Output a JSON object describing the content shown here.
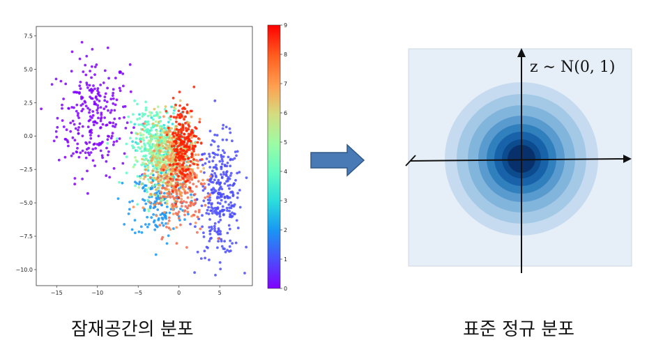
{
  "left_panel": {
    "caption": "잠재공간의 분포",
    "chart_data": {
      "type": "scatter",
      "x_ticks": [
        "−15",
        "−10",
        "−5",
        "0",
        "5"
      ],
      "y_ticks": [
        "7.5",
        "5.0",
        "2.5",
        "0.0",
        "−2.5",
        "−5.0",
        "−7.5",
        "−10.0"
      ],
      "xlim": [
        -17.5,
        9.0
      ],
      "ylim": [
        -11.2,
        8.2
      ],
      "colorbar": {
        "colormap": "rainbow",
        "ticks": [
          "0",
          "1",
          "2",
          "3",
          "4",
          "5",
          "6",
          "7",
          "8",
          "9"
        ],
        "range": [
          0,
          9
        ]
      },
      "clusters": [
        {
          "label_value": 0,
          "color": "#8000ff",
          "center": [
            -10.5,
            1.5
          ],
          "spread": [
            2.6,
            2.6
          ],
          "count": 260
        },
        {
          "label_value": 1,
          "color": "#4b4efc",
          "center": [
            5.0,
            -4.6
          ],
          "spread": [
            1.6,
            2.6
          ],
          "count": 300
        },
        {
          "label_value": 2,
          "color": "#1996f3",
          "center": [
            -2.5,
            -5.0
          ],
          "spread": [
            2.0,
            1.6
          ],
          "count": 160
        },
        {
          "label_value": 3,
          "color": "#2adddd",
          "center": [
            -2.0,
            -1.0
          ],
          "spread": [
            2.0,
            1.6
          ],
          "count": 140
        },
        {
          "label_value": 4,
          "color": "#62fbc4",
          "center": [
            -3.0,
            -0.8
          ],
          "spread": [
            1.8,
            1.8
          ],
          "count": 220
        },
        {
          "label_value": 5,
          "color": "#b2f396",
          "center": [
            -2.0,
            -1.5
          ],
          "spread": [
            1.6,
            1.6
          ],
          "count": 200
        },
        {
          "label_value": 6,
          "color": "#e0c060",
          "center": [
            -1.0,
            -1.8
          ],
          "spread": [
            1.6,
            1.8
          ],
          "count": 180
        },
        {
          "label_value": 7,
          "color": "#ff8e4a",
          "center": [
            -0.5,
            -2.5
          ],
          "spread": [
            1.8,
            2.2
          ],
          "count": 200
        },
        {
          "label_value": 8,
          "color": "#f06a50",
          "center": [
            0.5,
            -4.0
          ],
          "spread": [
            1.8,
            2.0
          ],
          "count": 150
        },
        {
          "label_value": 9,
          "color": "#ff2000",
          "center": [
            0.5,
            -0.5
          ],
          "spread": [
            1.0,
            1.8
          ],
          "count": 220
        }
      ]
    }
  },
  "right_panel": {
    "caption": "표준 정규 분포",
    "formula": "z ∼ N(0, 1)",
    "contour_colors": [
      "#c6dbef",
      "#a4c9e6",
      "#82b5dc",
      "#5a9bcf",
      "#3080bd",
      "#1862a9",
      "#0b4b8e",
      "#08306b"
    ],
    "background_color": "#e6eef7"
  },
  "arrow": {
    "color": "#4a7ab5",
    "stroke": "#2f5987"
  }
}
